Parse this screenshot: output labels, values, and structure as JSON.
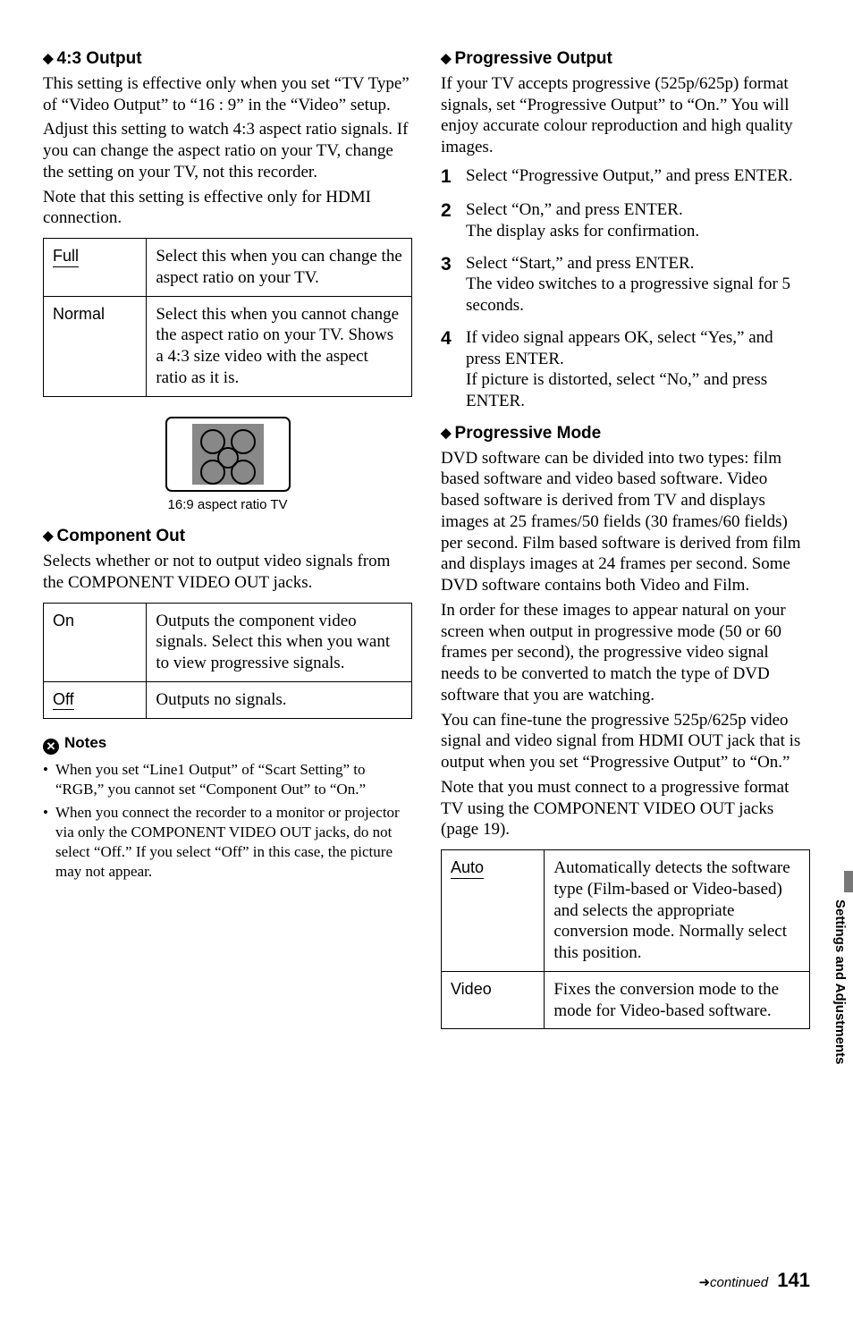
{
  "left": {
    "s1": {
      "title": "4:3 Output",
      "p1": "This setting is effective only when you set “TV Type” of “Video Output” to “16 : 9” in the “Video” setup.",
      "p2": "Adjust this setting to watch 4:3 aspect ratio signals. If you can change the aspect ratio on your TV, change the setting on your TV, not this recorder.",
      "p3": "Note that this setting is effective only for HDMI connection.",
      "table": [
        {
          "k": "Full",
          "ku": true,
          "v": "Select this when you can change the aspect ratio on your TV."
        },
        {
          "k": "Normal",
          "ku": false,
          "v": "Select this when you cannot change the aspect ratio on your TV. Shows a 4:3 size video with the aspect ratio as it is."
        }
      ],
      "caption": "16:9 aspect ratio TV"
    },
    "s2": {
      "title": "Component Out",
      "p1": "Selects whether or not to output video signals from the COMPONENT VIDEO OUT jacks.",
      "table": [
        {
          "k": "On",
          "ku": false,
          "v": "Outputs the component video signals. Select this when you want to view progressive signals."
        },
        {
          "k": "Off",
          "ku": true,
          "v": "Outputs no signals."
        }
      ]
    },
    "notes": {
      "title": "Notes",
      "items": [
        "When you set “Line1 Output” of “Scart Setting” to “RGB,” you cannot set “Component Out” to “On.”",
        "When you connect the recorder to a monitor or projector via only the COMPONENT VIDEO OUT jacks, do not select “Off.” If you select “Off” in this case, the picture may not appear."
      ]
    }
  },
  "right": {
    "s1": {
      "title": "Progressive Output",
      "p1": "If your TV accepts progressive (525p/625p) format signals, set “Progressive Output” to “On.” You will enjoy accurate colour reproduction and high quality images.",
      "steps": [
        "Select “Progressive Output,” and press ENTER.",
        "Select “On,” and press ENTER.\nThe display asks for confirmation.",
        "Select “Start,” and press ENTER.\nThe video switches to a progressive signal for 5 seconds.",
        "If video signal appears OK, select “Yes,” and press ENTER.\nIf picture is distorted, select “No,” and press ENTER."
      ]
    },
    "s2": {
      "title": "Progressive Mode",
      "p1": "DVD software can be divided into two types: film based software and video based software. Video based software is derived from TV and displays images at 25 frames/50 fields (30 frames/60 fields) per second. Film based software is derived from film and displays images at 24 frames per second. Some DVD software contains both Video and Film.",
      "p2": "In order for these images to appear natural on your screen when output in progressive mode (50 or 60 frames per second), the progressive video signal needs to be converted to match the type of DVD software that you are watching.",
      "p3": "You can fine-tune the progressive 525p/625p video signal and video signal from HDMI OUT jack that is output when you set “Progressive Output” to “On.”",
      "p4": "Note that you must connect to a progressive format TV using the COMPONENT VIDEO OUT jacks (page 19).",
      "table": [
        {
          "k": "Auto",
          "ku": true,
          "v": "Automatically detects the software type (Film-based or Video-based) and selects the appropriate conversion mode. Normally select this position."
        },
        {
          "k": "Video",
          "ku": false,
          "v": "Fixes the conversion mode to the mode for Video-based software."
        }
      ]
    }
  },
  "side_label": "Settings and Adjustments",
  "footer": {
    "cont": "continued",
    "page": "141"
  }
}
